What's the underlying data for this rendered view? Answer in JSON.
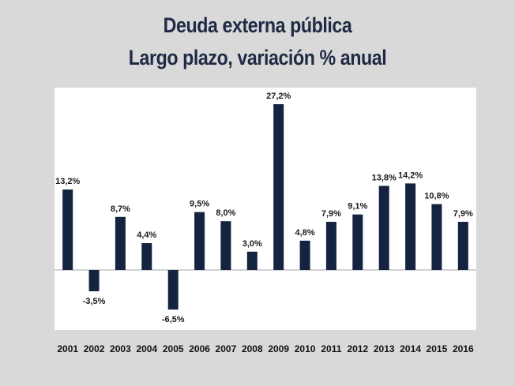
{
  "chart_data": {
    "type": "bar",
    "title": "Deuda externa pública",
    "subtitle": "Largo plazo, variación % anual",
    "categories": [
      "2001",
      "2002",
      "2003",
      "2004",
      "2005",
      "2006",
      "2007",
      "2008",
      "2009",
      "2010",
      "2011",
      "2012",
      "2013",
      "2014",
      "2015",
      "2016"
    ],
    "values": [
      13.2,
      -3.5,
      8.7,
      4.4,
      -6.5,
      9.5,
      8.0,
      3.0,
      27.2,
      4.8,
      7.9,
      9.1,
      13.8,
      14.2,
      10.8,
      7.9
    ],
    "data_labels": [
      "13,2%",
      "-3,5%",
      "8,7%",
      "4,4%",
      "-6,5%",
      "9,5%",
      "8,0%",
      "3,0%",
      "27,2%",
      "4,8%",
      "7,9%",
      "9,1%",
      "13,8%",
      "14,2%",
      "10,8%",
      "7,9%"
    ],
    "xlabel": "",
    "ylabel": "",
    "ylim": [
      -10,
      30
    ],
    "grid": false,
    "legend": "none",
    "bar_color": "#132340",
    "plot_background": "#ffffff",
    "page_background": "#d9d9d9"
  }
}
